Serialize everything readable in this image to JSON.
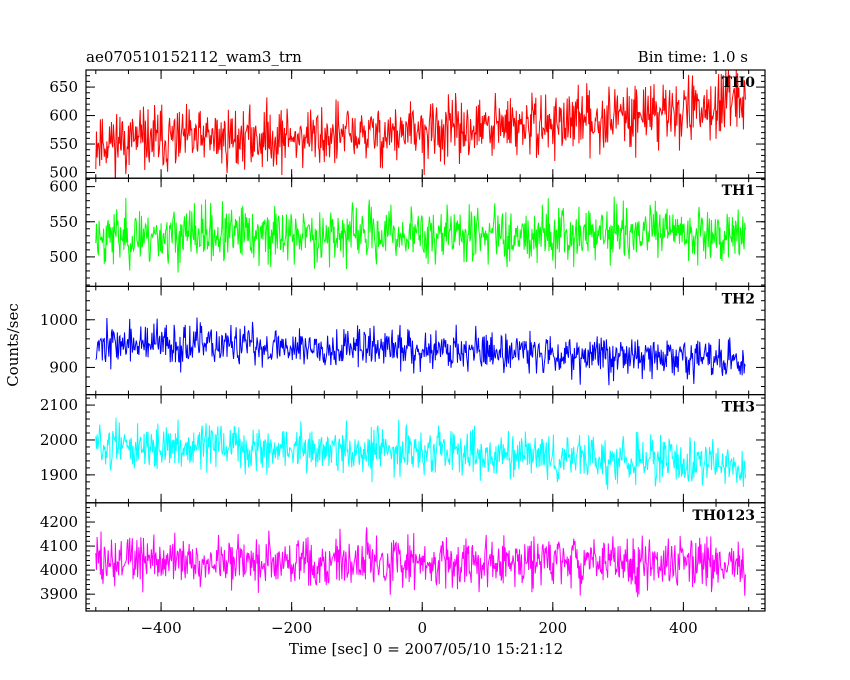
{
  "header": {
    "title": "ae070510152112_wam3_trn",
    "bin_time": "Bin time: 1.0 s"
  },
  "chart_data": {
    "type": "line",
    "xlabel": "Time [sec] 0 = 2007/05/10 15:21:12",
    "ylabel": "Counts/sec",
    "xlim": [
      -515,
      525
    ],
    "x_ticks": [
      -400,
      -200,
      0,
      200,
      400
    ],
    "x_tick_labels": [
      "−400",
      "−200",
      "0",
      "200",
      "400"
    ],
    "x_range": [
      -500,
      495
    ],
    "bin": 1.0,
    "panels": [
      {
        "name": "TH0",
        "color": "#ff0000",
        "ylim": [
          490,
          680
        ],
        "y_ticks": [
          500,
          550,
          600,
          650
        ],
        "trend": [
          [
            -500,
            555
          ],
          [
            -200,
            562
          ],
          [
            0,
            570
          ],
          [
            200,
            585
          ],
          [
            300,
            600
          ],
          [
            495,
            620
          ]
        ],
        "noise": 38,
        "seed": 11
      },
      {
        "name": "TH1",
        "color": "#00ff00",
        "ylim": [
          458,
          612
        ],
        "y_ticks": [
          500,
          550,
          600
        ],
        "trend": [
          [
            -500,
            530
          ],
          [
            495,
            535
          ]
        ],
        "noise": 28,
        "seed": 23
      },
      {
        "name": "TH2",
        "color": "#0000ff",
        "ylim": [
          843,
          1070
        ],
        "y_ticks": [
          900,
          1000
        ],
        "trend": [
          [
            -500,
            950
          ],
          [
            0,
            940
          ],
          [
            495,
            915
          ]
        ],
        "noise": 30,
        "seed": 37
      },
      {
        "name": "TH3",
        "color": "#00ffff",
        "ylim": [
          1820,
          2130
        ],
        "y_ticks": [
          1900,
          2000,
          2100
        ],
        "trend": [
          [
            -500,
            1985
          ],
          [
            0,
            1965
          ],
          [
            495,
            1930
          ]
        ],
        "noise": 45,
        "seed": 51
      },
      {
        "name": "TH0123",
        "color": "#ff00ff",
        "ylim": [
          3830,
          4280
        ],
        "y_ticks": [
          3900,
          4000,
          4100,
          4200
        ],
        "trend": [
          [
            -500,
            4040
          ],
          [
            495,
            4030
          ]
        ],
        "noise": 75,
        "seed": 73
      }
    ]
  }
}
